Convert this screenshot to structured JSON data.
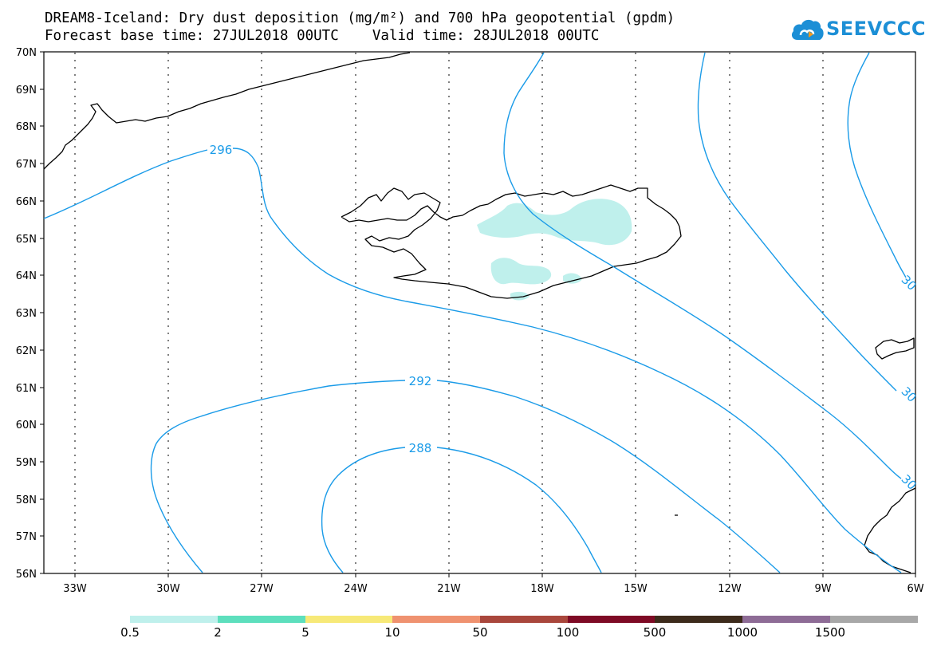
{
  "title_line1": "DREAM8-Iceland: Dry dust deposition (mg/m²) and 700 hPa geopotential (gpdm)",
  "title_line2": "Forecast base time: 27JUL2018 00UTC    Valid time: 28JUL2018 00UTC",
  "logo_text": "SEEVCCC",
  "logo_icon": "cloud-icon",
  "latitude_labels": [
    "70N",
    "69N",
    "68N",
    "67N",
    "66N",
    "65N",
    "64N",
    "63N",
    "62N",
    "61N",
    "60N",
    "59N",
    "58N",
    "57N",
    "56N"
  ],
  "longitude_labels": [
    "33W",
    "30W",
    "27W",
    "24W",
    "21W",
    "18W",
    "15W",
    "12W",
    "9W",
    "6W"
  ],
  "contour_labels": [
    "296",
    "292",
    "288",
    "30",
    "30",
    "30"
  ],
  "legend": {
    "colors": [
      "#bff0ec",
      "#5ddfbd",
      "#f7e978",
      "#ef9270",
      "#a9473c",
      "#7e0a25",
      "#3d2b1b",
      "#8e6c96",
      "#a8a8a8"
    ],
    "labels": [
      "0.5",
      "2",
      "5",
      "10",
      "50",
      "100",
      "500",
      "1000",
      "1500"
    ]
  },
  "colors": {
    "contour": "#1a9be8",
    "coast": "#000000",
    "dust_low": "#bff0ec"
  }
}
